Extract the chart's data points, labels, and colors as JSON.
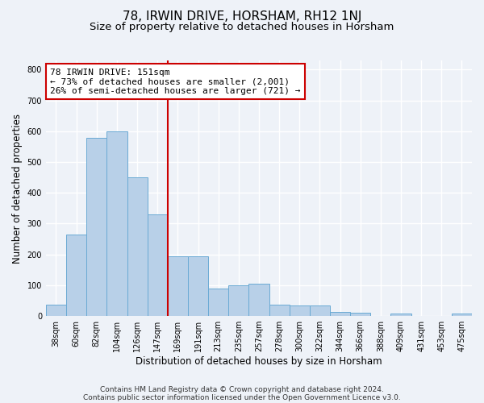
{
  "title": "78, IRWIN DRIVE, HORSHAM, RH12 1NJ",
  "subtitle": "Size of property relative to detached houses in Horsham",
  "xlabel": "Distribution of detached houses by size in Horsham",
  "ylabel": "Number of detached properties",
  "categories": [
    "38sqm",
    "60sqm",
    "82sqm",
    "104sqm",
    "126sqm",
    "147sqm",
    "169sqm",
    "191sqm",
    "213sqm",
    "235sqm",
    "257sqm",
    "278sqm",
    "300sqm",
    "322sqm",
    "344sqm",
    "366sqm",
    "388sqm",
    "409sqm",
    "431sqm",
    "453sqm",
    "475sqm"
  ],
  "values": [
    38,
    265,
    580,
    600,
    450,
    330,
    195,
    195,
    90,
    100,
    105,
    38,
    35,
    35,
    12,
    10,
    0,
    7,
    0,
    0,
    7
  ],
  "bar_color": "#b8d0e8",
  "bar_edge_color": "#6aaad4",
  "vline_color": "#cc0000",
  "annotation_line1": "78 IRWIN DRIVE: 151sqm",
  "annotation_line2": "← 73% of detached houses are smaller (2,001)",
  "annotation_line3": "26% of semi-detached houses are larger (721) →",
  "annotation_box_color": "#ffffff",
  "annotation_box_edge": "#cc0000",
  "ylim": [
    0,
    830
  ],
  "yticks": [
    0,
    100,
    200,
    300,
    400,
    500,
    600,
    700,
    800
  ],
  "footer_line1": "Contains HM Land Registry data © Crown copyright and database right 2024.",
  "footer_line2": "Contains public sector information licensed under the Open Government Licence v3.0.",
  "background_color": "#eef2f8",
  "grid_color": "#ffffff",
  "title_fontsize": 11,
  "subtitle_fontsize": 9.5,
  "tick_fontsize": 7,
  "ylabel_fontsize": 8.5,
  "xlabel_fontsize": 8.5,
  "annotation_fontsize": 8,
  "footer_fontsize": 6.5
}
